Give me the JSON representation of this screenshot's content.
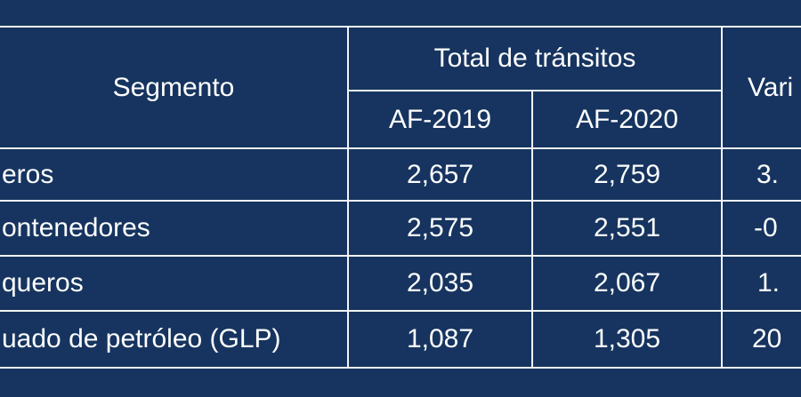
{
  "colors": {
    "background": "#16345f",
    "lines": "#f3f5f8",
    "text": "#ffffff"
  },
  "table": {
    "header": {
      "segment": "Segmento",
      "total_transits": "Total de tránsitos",
      "variation_partial": "Vari",
      "year_2019": "AF-2019",
      "year_2020": "AF-2020"
    },
    "rows": [
      {
        "segment": "eros",
        "af2019": "2,657",
        "af2020": "2,759",
        "variation": "3."
      },
      {
        "segment": "ontenedores",
        "af2019": "2,575",
        "af2020": "2,551",
        "variation": "-0"
      },
      {
        "segment": "queros",
        "af2019": "2,035",
        "af2020": "2,067",
        "variation": "1."
      },
      {
        "segment": "uado de petróleo  (GLP)",
        "af2019": "1,087",
        "af2020": "1,305",
        "variation": "20"
      }
    ]
  }
}
